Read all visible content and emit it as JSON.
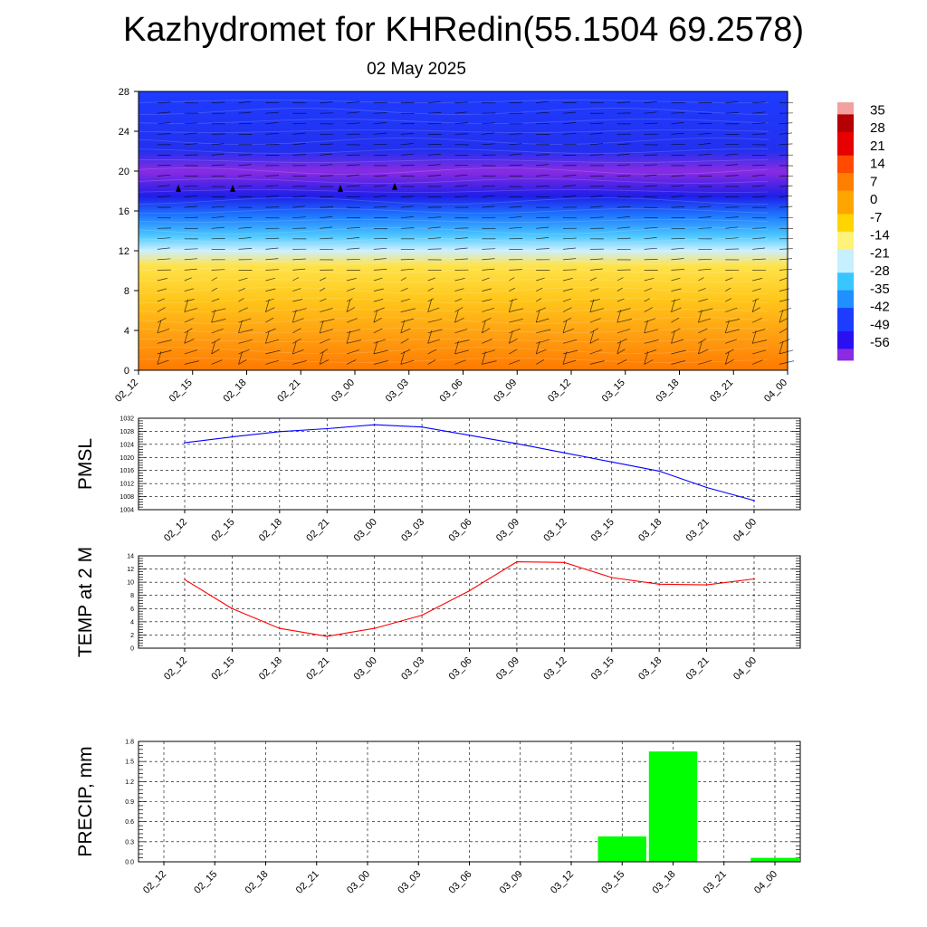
{
  "header": {
    "title": "Kazhydromet for KHRedin(55.1504 69.2578)",
    "date": "02 May 2025"
  },
  "chart_data": [
    {
      "type": "heatmap",
      "name": "vertical-profile",
      "x_categories": [
        "02_12",
        "02_15",
        "02_18",
        "02_21",
        "03_00",
        "03_03",
        "03_06",
        "03_09",
        "03_12",
        "03_15",
        "03_18",
        "03_21",
        "04_00"
      ],
      "y_ticks": [
        0,
        4,
        8,
        12,
        16,
        20,
        24,
        28
      ],
      "ylim": [
        0,
        28
      ],
      "colorbar_labels": [
        "35",
        "28",
        "21",
        "14",
        "7",
        "0",
        "-7",
        "-14",
        "-21",
        "-28",
        "-35",
        "-42",
        "-49",
        "-56"
      ],
      "colorbar_range": [
        -63,
        38
      ],
      "colorbar_colors": [
        "#8a2be2",
        "#2a10f0",
        "#1e3cff",
        "#1e90ff",
        "#39c6ff",
        "#c7f0ff",
        "#fff27a",
        "#ffd400",
        "#ffa500",
        "#ff7f00",
        "#ff4a00",
        "#e60000",
        "#b40000",
        "#f2a0a0"
      ],
      "field_bands": [
        {
          "y": 0,
          "color": "#ff7a00"
        },
        {
          "y": 3,
          "color": "#ff9a10"
        },
        {
          "y": 7,
          "color": "#ffc61a"
        },
        {
          "y": 10.5,
          "color": "#ffe34a"
        },
        {
          "y": 12,
          "color": "#cdefff"
        },
        {
          "y": 13.5,
          "color": "#4cc8ff"
        },
        {
          "y": 15.5,
          "color": "#1e78ff"
        },
        {
          "y": 17.5,
          "color": "#1e1ee8"
        },
        {
          "y": 20,
          "color": "#8a2be2"
        },
        {
          "y": 22,
          "color": "#2330ee"
        },
        {
          "y": 28,
          "color": "#1e3cff"
        }
      ]
    },
    {
      "type": "line",
      "name": "pmsl",
      "ylabel": "PMSL",
      "categories": [
        "02_12",
        "02_15",
        "02_18",
        "02_21",
        "03_00",
        "03_03",
        "03_06",
        "03_09",
        "03_12",
        "03_15",
        "03_18",
        "03_21",
        "04_00"
      ],
      "values": [
        1024.5,
        1026.3,
        1027.9,
        1028.8,
        1030.0,
        1029.3,
        1026.8,
        1024.2,
        1021.4,
        1018.6,
        1015.8,
        1010.8,
        1006.8
      ],
      "ylim": [
        1004,
        1032
      ],
      "y_ticks": [
        1004,
        1008,
        1012,
        1016,
        1020,
        1024,
        1028,
        1032
      ],
      "color": "#0000ff"
    },
    {
      "type": "line",
      "name": "temp2m",
      "ylabel": "TEMP at 2 M",
      "categories": [
        "02_12",
        "02_15",
        "02_18",
        "02_21",
        "03_00",
        "03_03",
        "03_06",
        "03_09",
        "03_12",
        "03_15",
        "03_18",
        "03_21",
        "04_00"
      ],
      "values": [
        10.4,
        6.0,
        3.0,
        1.8,
        3.0,
        5.0,
        8.7,
        13.1,
        13.0,
        10.7,
        9.7,
        9.6,
        10.5
      ],
      "ylim": [
        0,
        14
      ],
      "y_ticks": [
        0,
        2,
        4,
        6,
        8,
        10,
        12,
        14
      ],
      "color": "#ff0000"
    },
    {
      "type": "bar",
      "name": "precip",
      "ylabel": "PRECIP, mm",
      "categories": [
        "02_12",
        "02_15",
        "02_18",
        "02_21",
        "03_00",
        "03_03",
        "03_06",
        "03_09",
        "03_12",
        "03_15",
        "03_18",
        "03_21",
        "04_00"
      ],
      "values": [
        0,
        0,
        0,
        0,
        0,
        0,
        0,
        0,
        0,
        0.38,
        1.65,
        0,
        0.06
      ],
      "ylim": [
        0,
        1.8
      ],
      "y_ticks": [
        "0.0",
        "0.3",
        "0.6",
        "0.9",
        "1.2",
        "1.5",
        "1.8"
      ],
      "color": "#00ff00"
    }
  ]
}
